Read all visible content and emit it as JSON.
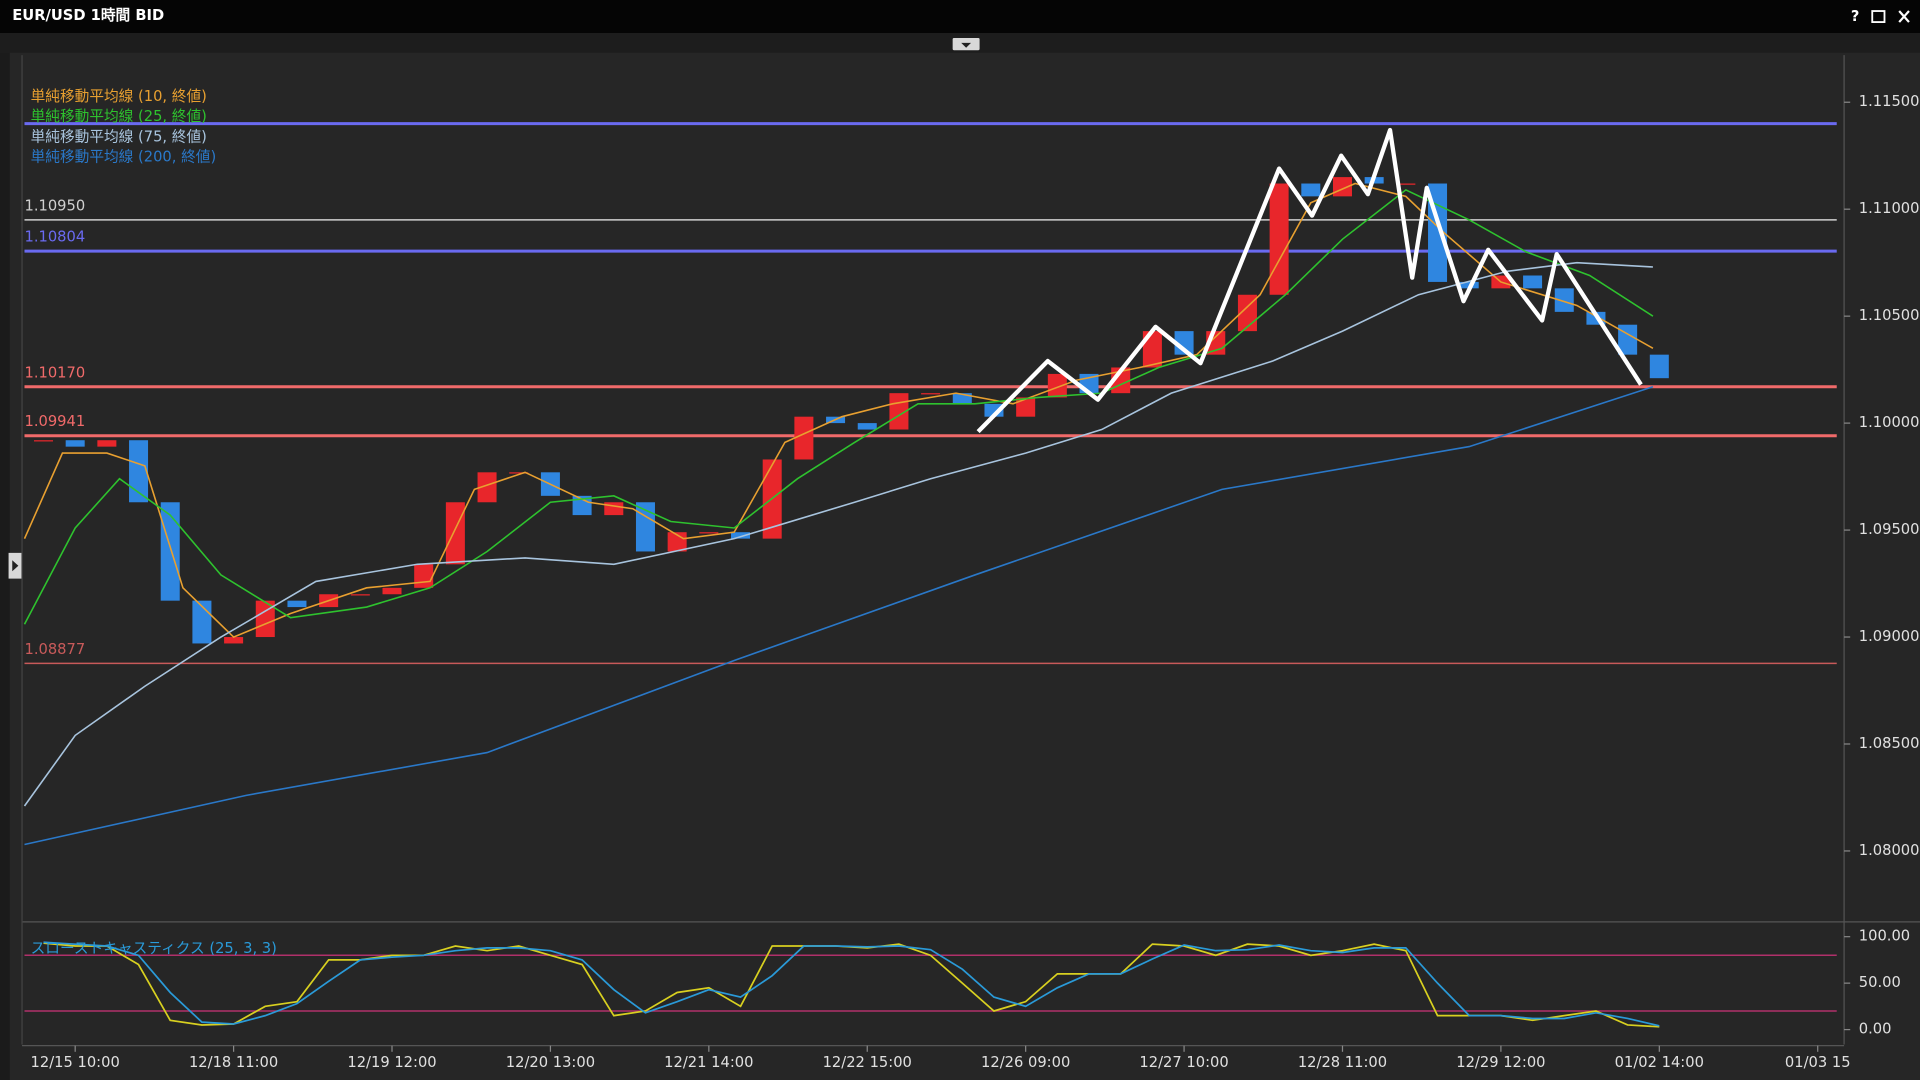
{
  "window": {
    "title": "EUR/USD 1時間 BID",
    "help": "?"
  },
  "chart_data": [
    {
      "type": "candlestick",
      "xlim": [
        -8,
        278
      ],
      "ylim": [
        1.0768,
        1.1172
      ],
      "yticks": [
        {
          "value": 1.115,
          "label": "1.11500"
        },
        {
          "value": 1.11,
          "label": "1.11000"
        },
        {
          "value": 1.105,
          "label": "1.10500"
        },
        {
          "value": 1.1,
          "label": "1.10000"
        },
        {
          "value": 1.095,
          "label": "1.09500"
        },
        {
          "value": 1.09,
          "label": "1.09000"
        },
        {
          "value": 1.085,
          "label": "1.08500"
        },
        {
          "value": 1.08,
          "label": "1.08000"
        }
      ],
      "up_color": "#e8262b",
      "down_color": "#2f86e0",
      "price": {
        "x": [
          -5,
          0,
          5,
          10,
          15,
          20,
          25,
          30,
          35,
          40,
          45,
          50,
          55,
          60,
          65,
          70,
          75,
          80,
          85,
          90,
          95,
          100,
          105,
          110,
          115,
          120,
          125,
          130,
          135,
          140,
          145,
          150,
          155,
          160,
          165,
          170,
          175,
          180,
          185,
          190,
          195,
          200,
          205,
          210,
          215,
          220,
          225,
          230,
          235,
          240,
          245,
          250
        ],
        "close": [
          1.0992,
          1.0989,
          1.0992,
          1.0963,
          1.0917,
          1.0897,
          1.09,
          1.0917,
          1.0914,
          1.092,
          1.092,
          1.0923,
          1.0934,
          1.0963,
          1.0977,
          1.0977,
          1.0966,
          1.0957,
          1.0963,
          1.094,
          1.0949,
          1.0949,
          1.0946,
          1.0983,
          1.1003,
          1.1,
          1.0997,
          1.1014,
          1.1014,
          1.1009,
          1.1003,
          1.1012,
          1.1023,
          1.1014,
          1.1026,
          1.1043,
          1.1032,
          1.1043,
          1.106,
          1.1112,
          1.1106,
          1.1115,
          1.1112,
          1.1112,
          1.1066,
          1.1063,
          1.1069,
          1.1063,
          1.1052,
          1.1046,
          1.1032,
          1.1021
        ]
      },
      "series": [
        {
          "name": "単純移動平均線 (10, 終値)",
          "color": "#e8a030",
          "x": [
            -8,
            -2,
            5,
            11,
            17,
            25,
            34,
            46,
            56,
            63,
            71,
            81,
            88,
            96,
            104,
            112,
            121,
            129,
            139,
            148,
            158,
            168,
            177,
            187,
            195,
            202,
            210,
            216,
            225,
            237,
            249
          ],
          "values": [
            1.0946,
            1.0986,
            1.0986,
            1.098,
            1.0923,
            1.09,
            1.0911,
            1.0923,
            1.0926,
            1.0969,
            1.0977,
            1.0963,
            1.096,
            1.0946,
            1.0949,
            1.0991,
            1.1003,
            1.1009,
            1.1014,
            1.1009,
            1.102,
            1.1026,
            1.1032,
            1.106,
            1.1103,
            1.1112,
            1.1106,
            1.1089,
            1.1066,
            1.1055,
            1.1035
          ]
        },
        {
          "name": "単純移動平均線 (25, 終値)",
          "color": "#2ec22e",
          "x": [
            -8,
            0,
            7,
            15,
            23,
            34,
            46,
            56,
            65,
            75,
            85,
            94,
            104,
            114,
            123,
            133,
            142,
            152,
            162,
            171,
            181,
            191,
            200,
            210,
            220,
            229,
            239,
            249
          ],
          "values": [
            1.0906,
            1.0951,
            1.0974,
            1.0957,
            1.0929,
            1.0909,
            1.0914,
            1.0923,
            1.094,
            1.0963,
            1.0966,
            1.0954,
            1.0951,
            1.0974,
            1.0991,
            1.1009,
            1.1009,
            1.1012,
            1.1014,
            1.1026,
            1.1035,
            1.106,
            1.1086,
            1.1109,
            1.1095,
            1.108,
            1.1069,
            1.105
          ]
        },
        {
          "name": "単純移動平均線 (75, 終値)",
          "color": "#a8c4de",
          "x": [
            -8,
            0,
            11,
            23,
            38,
            54,
            71,
            85,
            104,
            123,
            135,
            150,
            162,
            173,
            189,
            200,
            212,
            226,
            237,
            249
          ],
          "values": [
            1.0821,
            1.0854,
            1.0877,
            1.09,
            1.0926,
            1.0934,
            1.0937,
            1.0934,
            1.0946,
            1.0963,
            1.0974,
            1.0986,
            1.0997,
            1.1014,
            1.1029,
            1.1043,
            1.106,
            1.1071,
            1.1075,
            1.1073
          ]
        },
        {
          "name": "単純移動平均線 (200, 終値)",
          "color": "#2a78c8",
          "x": [
            -8,
            27,
            65,
            104,
            142,
            181,
            220,
            249
          ],
          "values": [
            1.0803,
            1.0826,
            1.0846,
            1.0889,
            1.0929,
            1.0969,
            1.0989,
            1.1017
          ]
        }
      ],
      "levels": [
        {
          "value": 1.114,
          "color": "#6a6af0",
          "style": "thick"
        },
        {
          "value": 1.1095,
          "label": "1.10950",
          "color": "#d0d0d0",
          "style": "thin"
        },
        {
          "value": 1.10804,
          "label": "1.10804",
          "color": "#6a6af0",
          "style": "thick"
        },
        {
          "value": 1.1017,
          "label": "1.10170",
          "color": "#f06a6a",
          "style": "thick"
        },
        {
          "value": 1.09941,
          "label": "1.09941",
          "color": "#f06a6a",
          "style": "thick"
        },
        {
          "value": 1.08877,
          "label": "1.08877",
          "color": "#c85a5a",
          "style": "thin"
        }
      ],
      "zigzag": {
        "color": "#ffffff",
        "x": [
          142.5,
          153.5,
          161.4,
          170.5,
          177.6,
          190,
          195.2,
          199.8,
          204,
          207.5,
          211,
          213.3,
          219.1,
          223,
          231.5,
          233.8,
          247.1
        ],
        "values": [
          1.0996,
          1.1029,
          1.1011,
          1.1045,
          1.1028,
          1.1119,
          1.1097,
          1.1125,
          1.1107,
          1.1137,
          1.1068,
          1.111,
          1.1057,
          1.1081,
          1.1048,
          1.1079,
          1.1018
        ]
      }
    },
    {
      "type": "stochastic",
      "title": "スローストキャスティクス (25, 3, 3)",
      "xlim": [
        -8,
        278
      ],
      "ylim": [
        -16,
        112
      ],
      "yticks": [
        {
          "value": 100,
          "label": "100.00"
        },
        {
          "value": 50,
          "label": "50.00"
        },
        {
          "value": 0,
          "label": "0.00"
        }
      ],
      "xticks": [
        {
          "value": 0,
          "label": "12/15 10:00"
        },
        {
          "value": 25,
          "label": "12/18 11:00"
        },
        {
          "value": 50,
          "label": "12/19 12:00"
        },
        {
          "value": 75,
          "label": "12/20 13:00"
        },
        {
          "value": 100,
          "label": "12/21 14:00"
        },
        {
          "value": 125,
          "label": "12/22 15:00"
        },
        {
          "value": 150,
          "label": "12/26 09:00"
        },
        {
          "value": 175,
          "label": "12/27 10:00"
        },
        {
          "value": 200,
          "label": "12/28 11:00"
        },
        {
          "value": 225,
          "label": "12/29 12:00"
        },
        {
          "value": 250,
          "label": "01/02 14:00"
        },
        {
          "value": 275,
          "label": "01/03 15"
        }
      ],
      "levels": [
        {
          "value": 80,
          "color": "#b0306a"
        },
        {
          "value": 20,
          "color": "#b0306a"
        }
      ],
      "series": [
        {
          "color": "#d8d020",
          "x": [
            -5,
            0,
            5,
            10,
            15,
            20,
            25,
            30,
            35,
            40,
            45,
            50,
            55,
            60,
            65,
            70,
            75,
            80,
            85,
            90,
            95,
            100,
            105,
            110,
            115,
            120,
            125,
            130,
            135,
            140,
            145,
            150,
            155,
            160,
            165,
            170,
            175,
            180,
            185,
            190,
            195,
            200,
            205,
            210,
            215,
            220,
            225,
            230,
            235,
            240,
            245,
            250
          ],
          "values": [
            93,
            90,
            90,
            70,
            10,
            5,
            6,
            25,
            30,
            75,
            75,
            80,
            80,
            90,
            85,
            90,
            80,
            70,
            15,
            20,
            40,
            45,
            25,
            90,
            90,
            90,
            88,
            92,
            80,
            50,
            20,
            30,
            60,
            60,
            60,
            92,
            90,
            80,
            92,
            90,
            80,
            85,
            92,
            85,
            15,
            15,
            15,
            10,
            15,
            20,
            5,
            3
          ]
        },
        {
          "color": "#2a9ad8",
          "x": [
            -5,
            0,
            5,
            10,
            15,
            20,
            25,
            30,
            35,
            40,
            45,
            50,
            55,
            60,
            65,
            70,
            75,
            80,
            85,
            90,
            95,
            100,
            105,
            110,
            115,
            120,
            125,
            130,
            135,
            140,
            145,
            150,
            155,
            160,
            165,
            170,
            175,
            180,
            185,
            190,
            195,
            200,
            205,
            210,
            215,
            220,
            225,
            230,
            235,
            240,
            245,
            250
          ],
          "values": [
            94,
            92,
            90,
            80,
            40,
            8,
            6,
            15,
            28,
            52,
            75,
            78,
            80,
            85,
            88,
            88,
            85,
            75,
            43,
            18,
            30,
            43,
            35,
            58,
            90,
            90,
            89,
            90,
            86,
            65,
            35,
            25,
            45,
            60,
            60,
            76,
            91,
            85,
            86,
            91,
            85,
            83,
            88,
            88,
            50,
            15,
            15,
            12,
            12,
            18,
            12,
            4
          ]
        }
      ]
    }
  ]
}
